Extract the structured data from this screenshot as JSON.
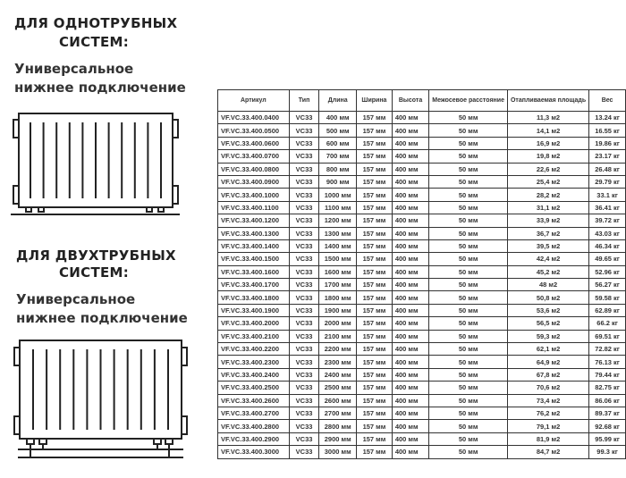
{
  "one_pipe": {
    "title_line1": "ДЛЯ ОДНОТРУБНЫХ",
    "title_line2": "СИСТЕМ:",
    "sub_line1": "Универсальное",
    "sub_line2": "нижнее подключение"
  },
  "two_pipe": {
    "title_line1": "ДЛЯ ДВУХТРУБНЫХ",
    "title_line2": "СИСТЕМ:",
    "sub_line1": "Универсальное",
    "sub_line2": "нижнее подключение"
  },
  "table": {
    "headers": [
      "Артикул",
      "Тип",
      "Длина",
      "Ширина",
      "Высота",
      "Межосевое расстояние",
      "Отапливаемая площадь",
      "Вес"
    ],
    "rows": [
      [
        "VF.VC.33.400.0400",
        "VC33",
        "400 мм",
        "157 мм",
        "400 мм",
        "50 мм",
        "11,3 м2",
        "13.24 кг"
      ],
      [
        "VF.VC.33.400.0500",
        "VC33",
        "500 мм",
        "157 мм",
        "400 мм",
        "50 мм",
        "14,1 м2",
        "16.55 кг"
      ],
      [
        "VF.VC.33.400.0600",
        "VC33",
        "600 мм",
        "157 мм",
        "400 мм",
        "50 мм",
        "16,9 м2",
        "19.86 кг"
      ],
      [
        "VF.VC.33.400.0700",
        "VC33",
        "700 мм",
        "157 мм",
        "400 мм",
        "50 мм",
        "19,8 м2",
        "23.17 кг"
      ],
      [
        "VF.VC.33.400.0800",
        "VC33",
        "800 мм",
        "157 мм",
        "400 мм",
        "50 мм",
        "22,6 м2",
        "26.48 кг"
      ],
      [
        "VF.VC.33.400.0900",
        "VC33",
        "900 мм",
        "157 мм",
        "400 мм",
        "50 мм",
        "25,4 м2",
        "29.79 кг"
      ],
      [
        "VF.VC.33.400.1000",
        "VC33",
        "1000 мм",
        "157 мм",
        "400 мм",
        "50 мм",
        "28,2 м2",
        "33.1 кг"
      ],
      [
        "VF.VC.33.400.1100",
        "VC33",
        "1100 мм",
        "157 мм",
        "400 мм",
        "50 мм",
        "31,1 м2",
        "36.41 кг"
      ],
      [
        "VF.VC.33.400.1200",
        "VC33",
        "1200 мм",
        "157 мм",
        "400 мм",
        "50 мм",
        "33,9 м2",
        "39.72 кг"
      ],
      [
        "VF.VC.33.400.1300",
        "VC33",
        "1300 мм",
        "157 мм",
        "400 мм",
        "50 мм",
        "36,7 м2",
        "43.03 кг"
      ],
      [
        "VF.VC.33.400.1400",
        "VC33",
        "1400 мм",
        "157 мм",
        "400 мм",
        "50 мм",
        "39,5 м2",
        "46.34 кг"
      ],
      [
        "VF.VC.33.400.1500",
        "VC33",
        "1500 мм",
        "157 мм",
        "400 мм",
        "50 мм",
        "42,4 м2",
        "49.65 кг"
      ],
      [
        "VF.VC.33.400.1600",
        "VC33",
        "1600 мм",
        "157 мм",
        "400 мм",
        "50 мм",
        "45,2 м2",
        "52.96 кг"
      ],
      [
        "VF.VC.33.400.1700",
        "VC33",
        "1700 мм",
        "157 мм",
        "400 мм",
        "50 мм",
        "48 м2",
        "56.27 кг"
      ],
      [
        "VF.VC.33.400.1800",
        "VC33",
        "1800 мм",
        "157 мм",
        "400 мм",
        "50 мм",
        "50,8 м2",
        "59.58 кг"
      ],
      [
        "VF.VC.33.400.1900",
        "VC33",
        "1900 мм",
        "157 мм",
        "400 мм",
        "50 мм",
        "53,6 м2",
        "62.89 кг"
      ],
      [
        "VF.VC.33.400.2000",
        "VC33",
        "2000 мм",
        "157 мм",
        "400 мм",
        "50 мм",
        "56,5 м2",
        "66.2 кг"
      ],
      [
        "VF.VC.33.400.2100",
        "VC33",
        "2100 мм",
        "157 мм",
        "400 мм",
        "50 мм",
        "59,3 м2",
        "69.51 кг"
      ],
      [
        "VF.VC.33.400.2200",
        "VC33",
        "2200 мм",
        "157 мм",
        "400 мм",
        "50 мм",
        "62,1 м2",
        "72.82 кг"
      ],
      [
        "VF.VC.33.400.2300",
        "VC33",
        "2300 мм",
        "157 мм",
        "400 мм",
        "50 мм",
        "64,9 м2",
        "76.13 кг"
      ],
      [
        "VF.VC.33.400.2400",
        "VC33",
        "2400 мм",
        "157 мм",
        "400 мм",
        "50 мм",
        "67,8 м2",
        "79.44 кг"
      ],
      [
        "VF.VC.33.400.2500",
        "VC33",
        "2500 мм",
        "157 мм",
        "400 мм",
        "50 мм",
        "70,6 м2",
        "82.75 кг"
      ],
      [
        "VF.VC.33.400.2600",
        "VC33",
        "2600 мм",
        "157 мм",
        "400 мм",
        "50 мм",
        "73,4 м2",
        "86.06 кг"
      ],
      [
        "VF.VC.33.400.2700",
        "VC33",
        "2700 мм",
        "157 мм",
        "400 мм",
        "50 мм",
        "76,2 м2",
        "89.37 кг"
      ],
      [
        "VF.VC.33.400.2800",
        "VC33",
        "2800 мм",
        "157 мм",
        "400 мм",
        "50 мм",
        "79,1 м2",
        "92.68 кг"
      ],
      [
        "VF.VC.33.400.2900",
        "VC33",
        "2900 мм",
        "157 мм",
        "400 мм",
        "50 мм",
        "81,9 м2",
        "95.99 кг"
      ],
      [
        "VF.VC.33.400.3000",
        "VC33",
        "3000 мм",
        "157 мм",
        "400 мм",
        "50 мм",
        "84,7 м2",
        "99.3 кг"
      ]
    ]
  }
}
